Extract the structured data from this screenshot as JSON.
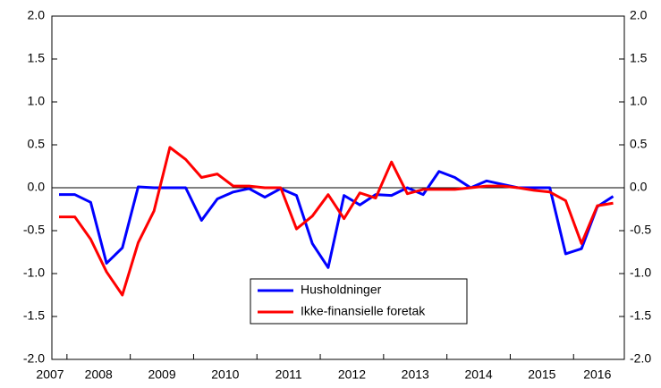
{
  "chart_data": {
    "type": "line",
    "categories": [
      "2007",
      null,
      "2008",
      null,
      null,
      null,
      "2009",
      null,
      null,
      null,
      "2010",
      null,
      null,
      null,
      "2011",
      null,
      null,
      null,
      "2012",
      null,
      null,
      null,
      "2013",
      null,
      null,
      null,
      "2014",
      null,
      null,
      null,
      "2015",
      null,
      null,
      null,
      "2016",
      null
    ],
    "series": [
      {
        "name": "Husholdninger",
        "color": "#0000ff",
        "values": [
          -0.08,
          -0.08,
          -0.17,
          -0.88,
          -0.7,
          0.01,
          0.0,
          0.0,
          0.0,
          -0.38,
          -0.13,
          -0.05,
          -0.01,
          -0.11,
          -0.01,
          -0.09,
          -0.65,
          -0.93,
          -0.09,
          -0.2,
          -0.08,
          -0.09,
          0.0,
          -0.08,
          0.19,
          0.12,
          0.0,
          0.08,
          0.04,
          0.0,
          0.0,
          0.0,
          -0.77,
          -0.71,
          -0.22,
          -0.1
        ]
      },
      {
        "name": "Ikke-finansielle foretak",
        "color": "#ff0000",
        "values": [
          -0.34,
          -0.34,
          -0.6,
          -0.98,
          -1.25,
          -0.64,
          -0.27,
          0.47,
          0.33,
          0.12,
          0.16,
          0.02,
          0.02,
          0.0,
          0.0,
          -0.48,
          -0.33,
          -0.08,
          -0.36,
          -0.06,
          -0.12,
          0.3,
          -0.07,
          -0.02,
          -0.02,
          -0.02,
          0.0,
          0.02,
          0.02,
          0.0,
          -0.03,
          -0.05,
          -0.15,
          -0.65,
          -0.21,
          -0.18
        ]
      }
    ],
    "ylim": [
      -2.0,
      2.0
    ],
    "yticks": [
      {
        "value": -2.0,
        "label": "-2.0"
      },
      {
        "value": -1.5,
        "label": "-1.5"
      },
      {
        "value": -1.0,
        "label": "-1.0"
      },
      {
        "value": -0.5,
        "label": "-0.5"
      },
      {
        "value": 0.0,
        "label": "0.0"
      },
      {
        "value": 0.5,
        "label": "0.5"
      },
      {
        "value": 1.0,
        "label": "1.0"
      },
      {
        "value": 1.5,
        "label": "1.5"
      },
      {
        "value": 2.0,
        "label": "2.0"
      }
    ],
    "zero_line": true
  }
}
